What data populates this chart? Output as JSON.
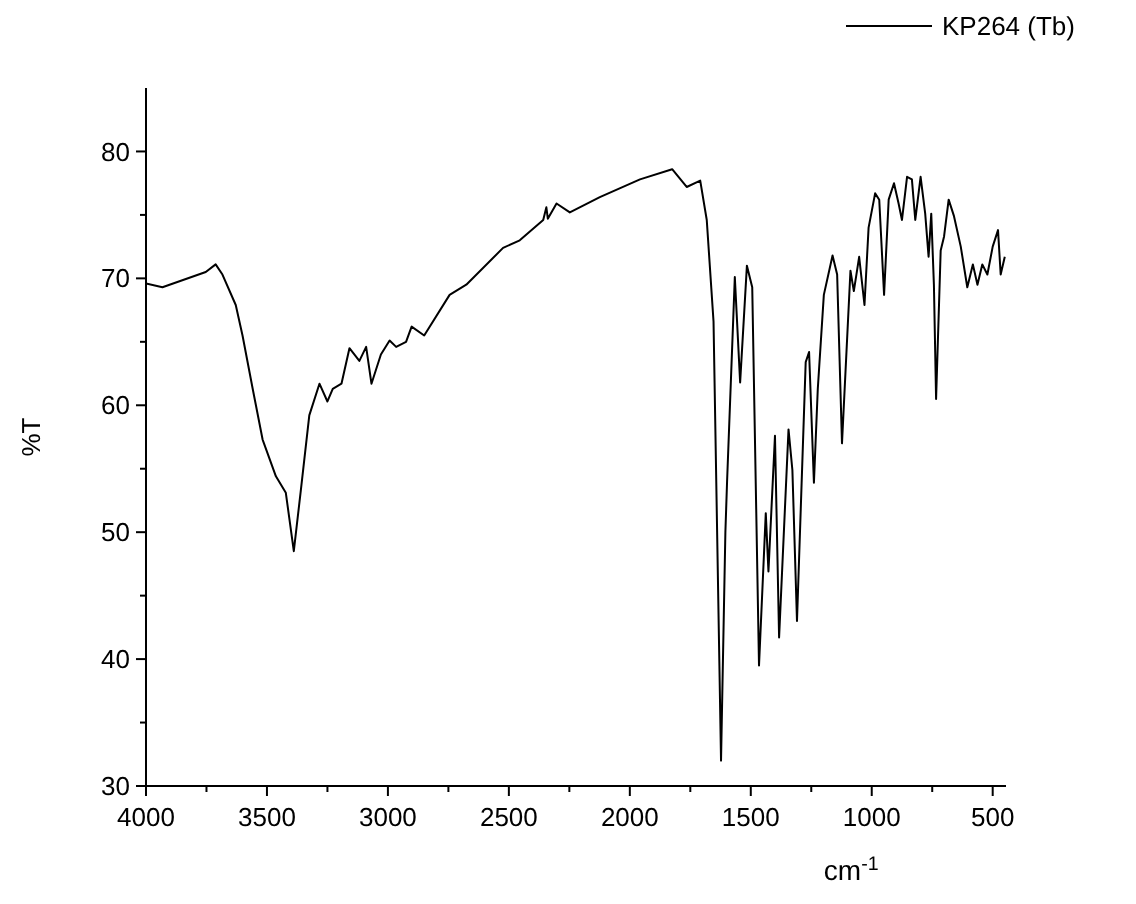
{
  "chart_data": {
    "type": "line",
    "xlabel": "cm$^{-1}$",
    "ylabel": "%T",
    "xlim": [
      4000,
      445
    ],
    "ylim": [
      30,
      85
    ],
    "xticks": [
      4000,
      {
        "value": 3750,
        "label": null
      },
      3500,
      {
        "value": 3250,
        "label": null
      },
      3000,
      {
        "value": 2750,
        "label": null
      },
      2500,
      {
        "value": 2250,
        "label": null
      },
      2000,
      {
        "value": 1750,
        "label": null
      },
      1500,
      {
        "value": 1250,
        "label": null
      },
      1000,
      {
        "value": 750,
        "label": null
      },
      500
    ],
    "yticks": [
      30,
      {
        "value": 35,
        "label": null
      },
      40,
      {
        "value": 45,
        "label": null
      },
      50,
      {
        "value": 55,
        "label": null
      },
      60,
      {
        "value": 65,
        "label": null
      },
      70,
      {
        "value": 75,
        "label": null
      },
      80
    ],
    "grid": false,
    "legend": "top right",
    "marker": "none",
    "line_style": "solid",
    "series": [
      {
        "name": "KP264 (Tb)",
        "color": "#000000",
        "x": [
          4000,
          3932,
          3753,
          3712,
          3684,
          3629,
          3601,
          3559,
          3518,
          3463,
          3422,
          3389,
          3360,
          3325,
          3283,
          3250,
          3228,
          3192,
          3159,
          3118,
          3090,
          3068,
          3029,
          2993,
          2966,
          2925,
          2902,
          2850,
          2745,
          2676,
          2524,
          2455,
          2358,
          2345,
          2339,
          2303,
          2248,
          2124,
          1958,
          1825,
          1765,
          1709,
          1682,
          1654,
          1623,
          1605,
          1598,
          1566,
          1544,
          1516,
          1494,
          1466,
          1438,
          1427,
          1400,
          1383,
          1344,
          1328,
          1309,
          1273,
          1259,
          1239,
          1223,
          1198,
          1162,
          1143,
          1123,
          1088,
          1074,
          1052,
          1030,
          1013,
          986,
          969,
          949,
          930,
          908,
          889,
          875,
          854,
          834,
          820,
          798,
          779,
          765,
          754,
          743,
          734,
          715,
          701,
          682,
          660,
          632,
          605,
          582,
          563,
          543,
          522,
          500,
          478,
          467,
          450
        ],
        "values": [
          69.6,
          69.3,
          70.5,
          71.1,
          70.3,
          67.9,
          65.5,
          61.3,
          57.3,
          54.4,
          53.1,
          48.5,
          53.3,
          59.2,
          61.7,
          60.3,
          61.3,
          61.7,
          64.5,
          63.5,
          64.6,
          61.7,
          64.0,
          65.1,
          64.6,
          65.0,
          66.2,
          65.5,
          68.7,
          69.5,
          72.4,
          73.0,
          74.6,
          75.6,
          74.7,
          75.9,
          75.2,
          76.4,
          77.8,
          78.6,
          77.2,
          77.7,
          74.6,
          66.6,
          32.0,
          50.0,
          54.0,
          70.1,
          61.8,
          71.0,
          69.3,
          39.5,
          51.5,
          46.9,
          57.6,
          41.7,
          58.1,
          54.9,
          43.0,
          63.4,
          64.2,
          53.9,
          61.3,
          68.7,
          71.8,
          70.3,
          57.0,
          70.6,
          69.0,
          71.7,
          67.9,
          74.0,
          76.7,
          76.2,
          68.7,
          76.2,
          77.5,
          75.9,
          74.6,
          78.0,
          77.8,
          74.6,
          78.0,
          75.1,
          71.7,
          75.1,
          69.5,
          60.5,
          72.2,
          73.3,
          76.2,
          74.9,
          72.5,
          69.3,
          71.1,
          69.5,
          71.1,
          70.3,
          72.5,
          73.8,
          70.3,
          71.7
        ]
      }
    ]
  }
}
